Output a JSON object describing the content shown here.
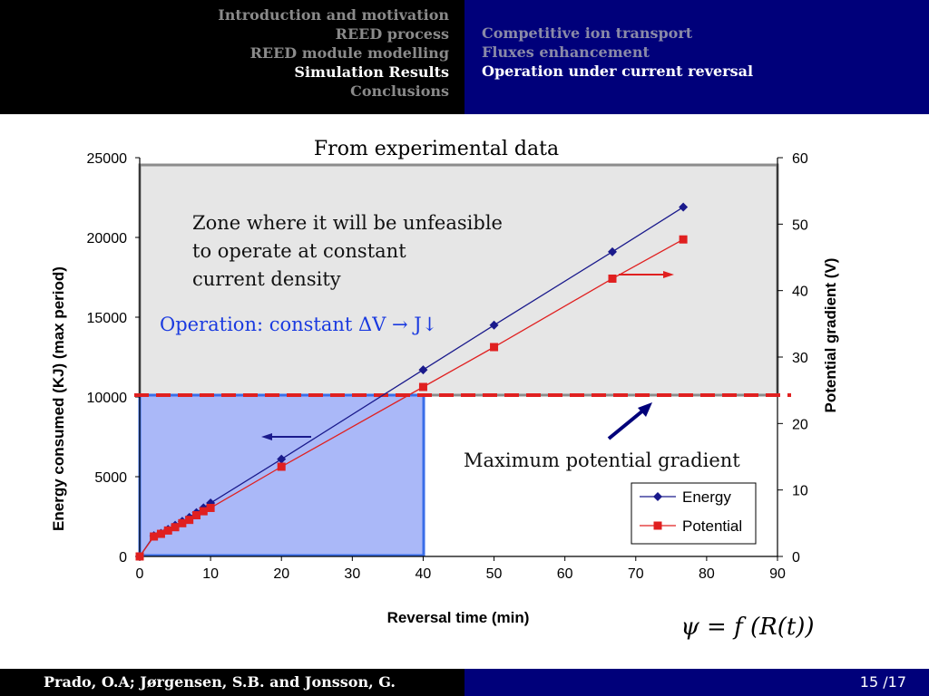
{
  "header": {
    "sections": [
      {
        "label": "Introduction and motivation",
        "active": false
      },
      {
        "label": "REED process",
        "active": false
      },
      {
        "label": "REED module modelling",
        "active": false
      },
      {
        "label": "Simulation Results",
        "active": true
      },
      {
        "label": "Conclusions",
        "active": false
      }
    ],
    "subsections": [
      {
        "label": "Competitive ion transport",
        "active": false
      },
      {
        "label": "Fluxes enhancement",
        "active": false
      },
      {
        "label": "Operation under current reversal",
        "active": true
      }
    ]
  },
  "footer": {
    "authors": "Prado, O.A; Jørgensen, S.B. and Jonsson, G.",
    "page": "15 /17"
  },
  "chart_data": {
    "type": "line",
    "title": "From experimental data",
    "xlabel": "Reversal time (min)",
    "ylabel": "Energy consumed (KJ) (max period)",
    "y2label": "Potential gradient (V)",
    "xlim": [
      0,
      90
    ],
    "ylim": [
      0,
      25000
    ],
    "y2lim": [
      0,
      60
    ],
    "x_ticks": [
      0,
      10,
      20,
      30,
      40,
      50,
      60,
      70,
      80,
      90
    ],
    "y_ticks": [
      0,
      5000,
      10000,
      15000,
      20000,
      25000
    ],
    "y2_ticks": [
      0,
      10,
      20,
      30,
      40,
      50,
      60
    ],
    "grid": false,
    "legend_position": "bottom-right",
    "series": [
      {
        "name": "Energy",
        "axis": "left",
        "color": "#1a1a8c",
        "marker": "diamond",
        "points": [
          [
            0,
            0
          ],
          [
            2,
            1300
          ],
          [
            3,
            1450
          ],
          [
            4,
            1700
          ],
          [
            5,
            1950
          ],
          [
            6,
            2200
          ],
          [
            7,
            2450
          ],
          [
            8,
            2750
          ],
          [
            9,
            3050
          ],
          [
            10,
            3350
          ],
          [
            20,
            6100
          ],
          [
            40,
            11700
          ],
          [
            50,
            14500
          ],
          [
            66.7,
            19100
          ],
          [
            76.7,
            21900
          ]
        ]
      },
      {
        "name": "Potential",
        "axis": "right",
        "color": "#e02020",
        "marker": "square",
        "points": [
          [
            0,
            0
          ],
          [
            2,
            3.0
          ],
          [
            3,
            3.4
          ],
          [
            4,
            3.9
          ],
          [
            5,
            4.4
          ],
          [
            6,
            5.0
          ],
          [
            7,
            5.5
          ],
          [
            8,
            6.2
          ],
          [
            9,
            6.8
          ],
          [
            10,
            7.3
          ],
          [
            20,
            13.5
          ],
          [
            40,
            25.5
          ],
          [
            50,
            31.5
          ],
          [
            66.7,
            41.8
          ],
          [
            76.7,
            47.7
          ]
        ]
      }
    ],
    "annotations": {
      "zone_text": "Zone where it will be unfeasible to operate at constant current density",
      "operation_text": "Operation: constant ΔV → J↓",
      "max_gradient_text": "Maximum potential gradient",
      "formula_text": "ψ = f (R(t))",
      "max_gradient_value": 24,
      "feasible_zone_x_max": 40
    }
  }
}
